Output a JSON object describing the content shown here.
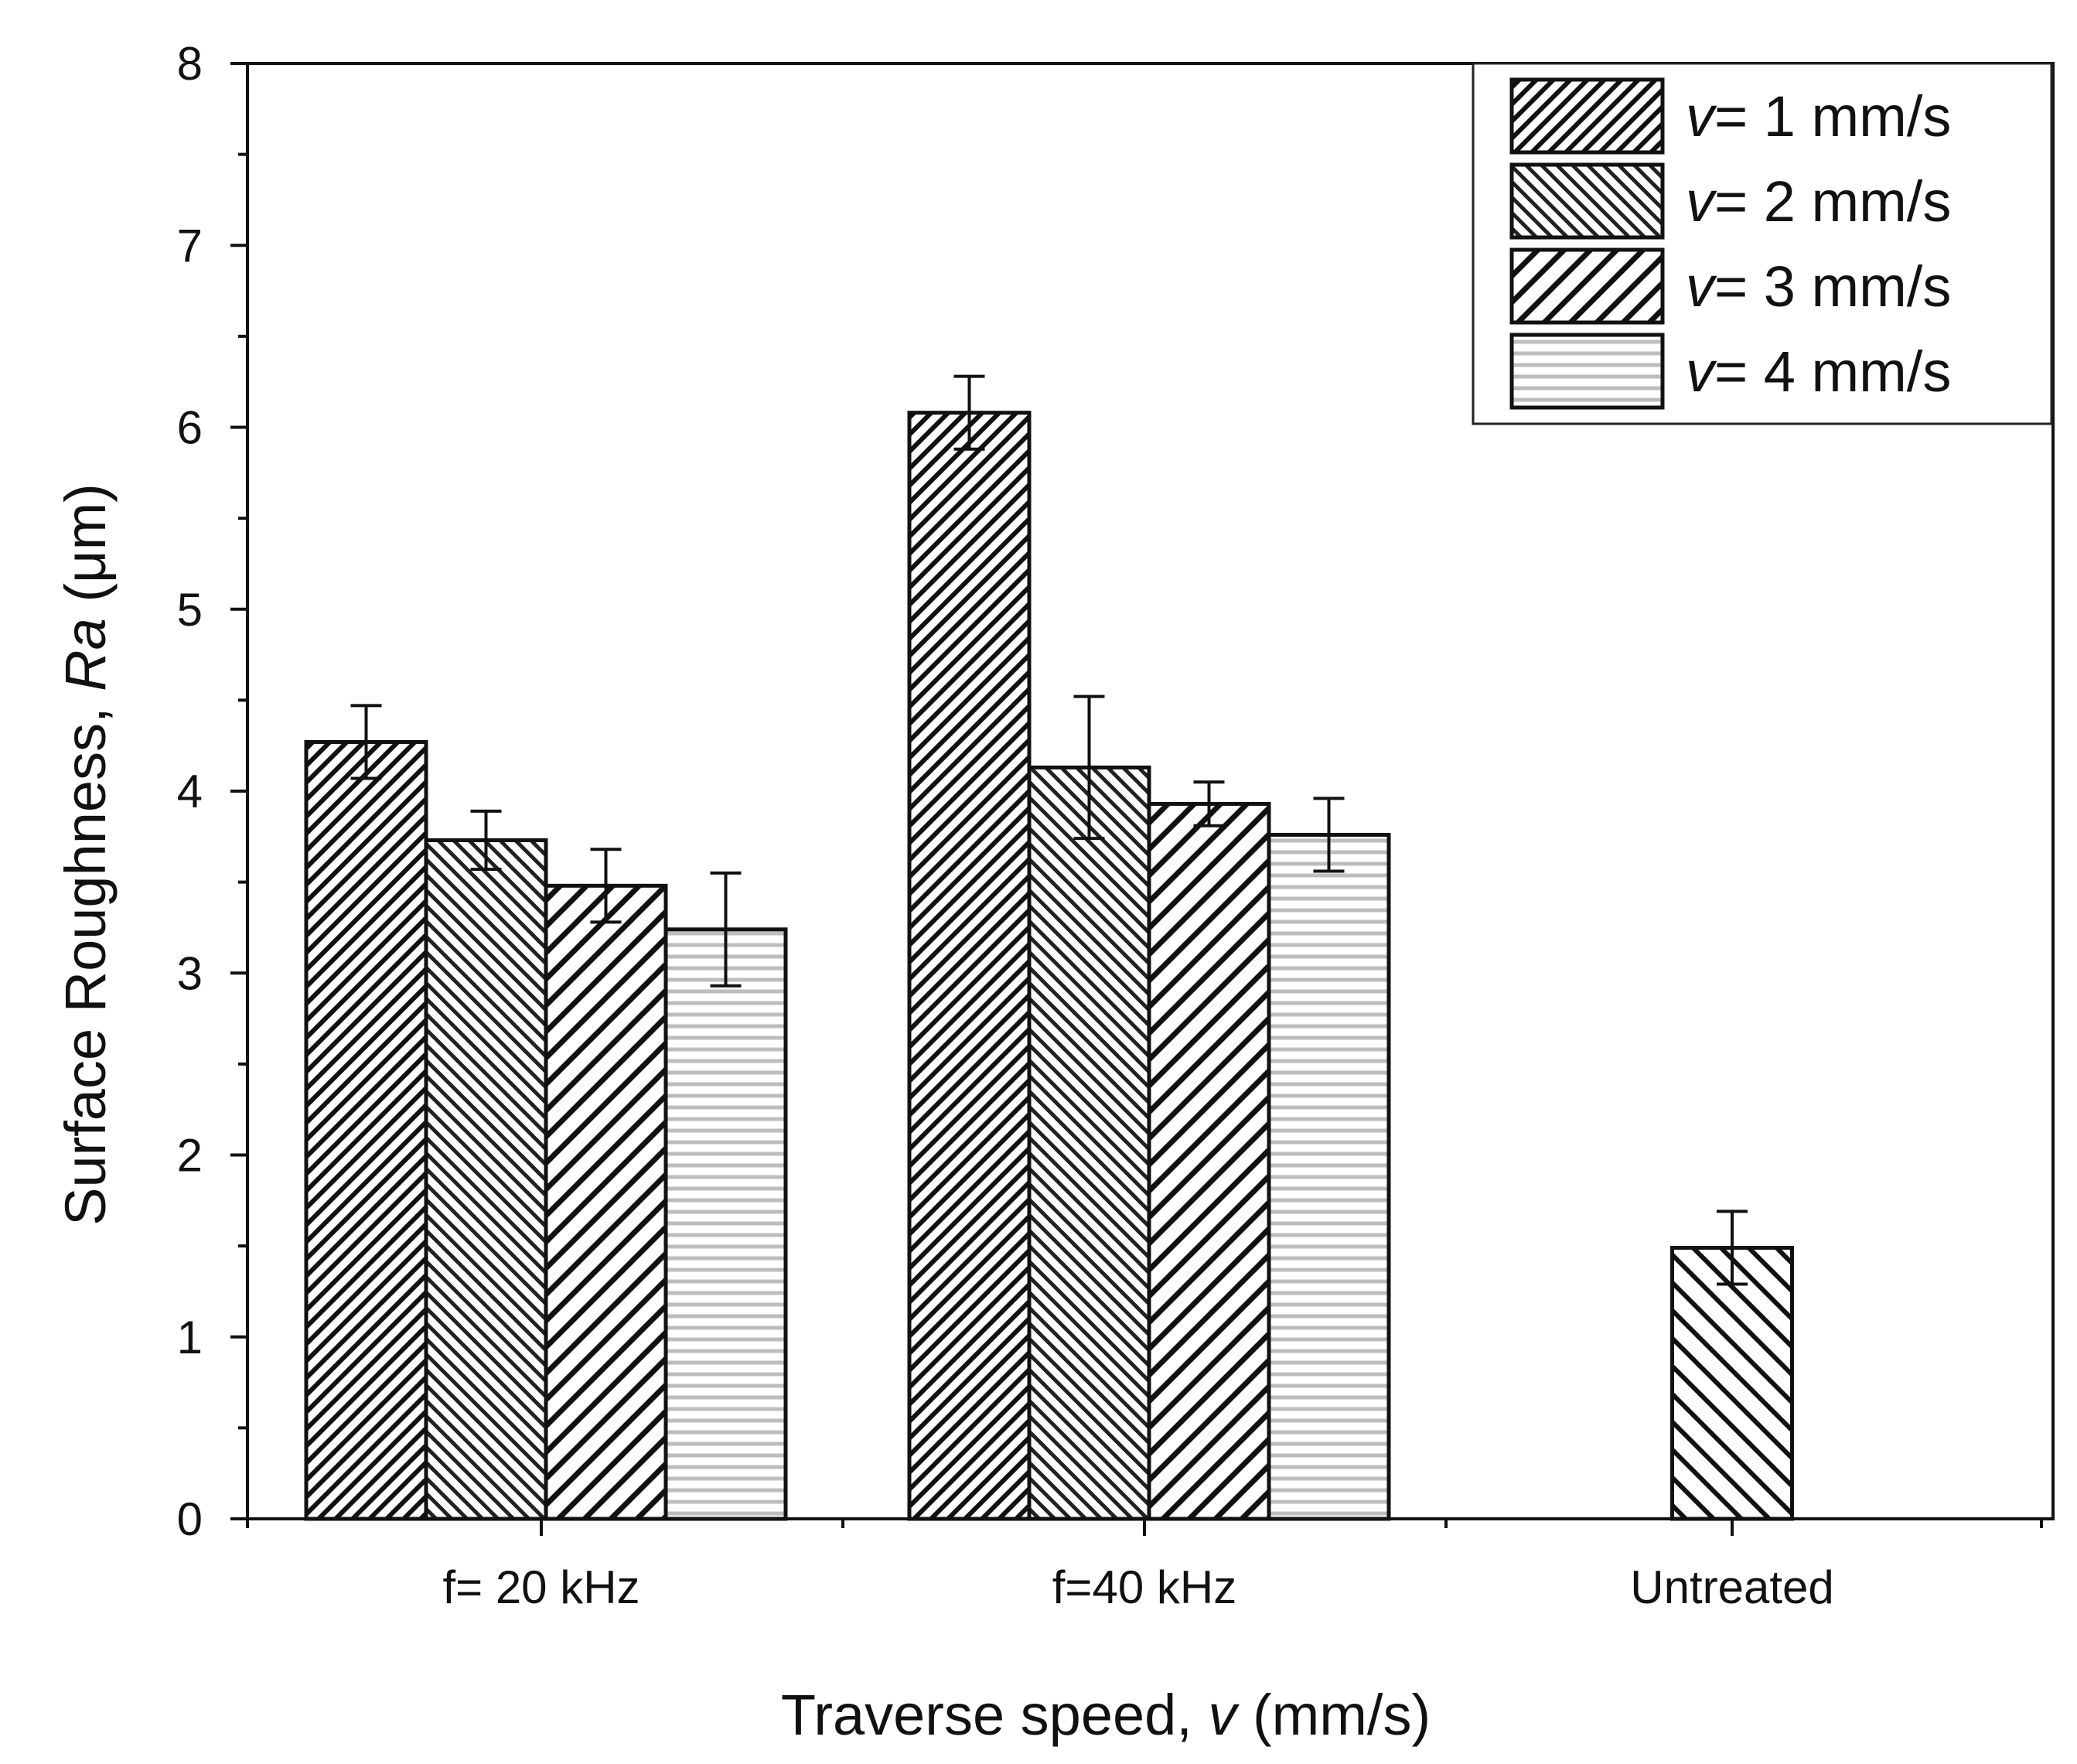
{
  "chart_data": {
    "type": "bar",
    "title": "",
    "xlabel_prefix": "Traverse speed, ",
    "xlabel_var": "v",
    "xlabel_suffix": " (mm/s)",
    "ylabel_prefix": "Surface Roughness, ",
    "ylabel_var": "Ra",
    "ylabel_suffix": " (μm)",
    "ylim": [
      0,
      8
    ],
    "yticks": [
      "0",
      "1",
      "2",
      "3",
      "4",
      "5",
      "6",
      "7",
      "8"
    ],
    "categories": [
      "f= 20 kHz",
      "f=40 kHz",
      "Untreated"
    ],
    "legend_position": "top-right",
    "series": [
      {
        "name_var": "v",
        "name_text": "= 1 mm/s",
        "pattern": "hatch-dense",
        "values": [
          4.27,
          6.08,
          null
        ],
        "errors": [
          0.2,
          0.2,
          null
        ]
      },
      {
        "name_var": "v",
        "name_text": "= 2 mm/s",
        "pattern": "hatch-back-dense",
        "values": [
          3.73,
          4.13,
          null
        ],
        "errors": [
          0.16,
          0.39,
          null
        ]
      },
      {
        "name_var": "v",
        "name_text": "= 3 mm/s",
        "pattern": "hatch-wide",
        "values": [
          3.48,
          3.93,
          null
        ],
        "errors": [
          0.2,
          0.12,
          null
        ]
      },
      {
        "name_var": "v",
        "name_text": "= 4 mm/s",
        "pattern": "horizontal-lines",
        "values": [
          3.24,
          3.76,
          null
        ],
        "errors": [
          0.31,
          0.2,
          null
        ]
      }
    ],
    "untreated": {
      "value": 1.49,
      "error": 0.2,
      "pattern": "hatch-back-wide"
    }
  }
}
